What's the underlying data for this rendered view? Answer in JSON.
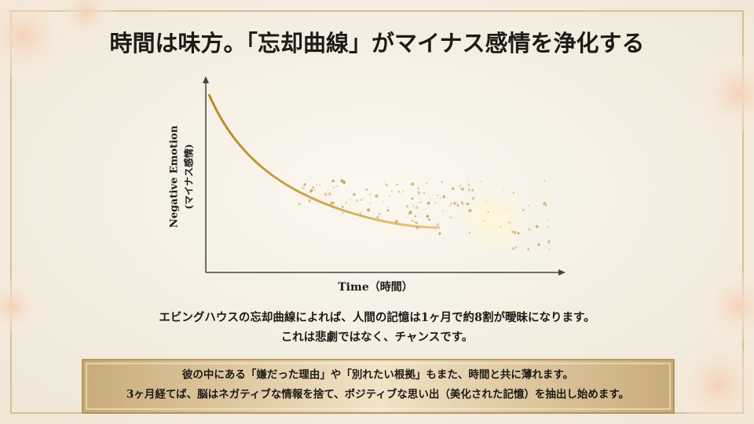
{
  "header": {
    "title": "時間は味方。「忘却曲線」がマイナス感情を浄化する"
  },
  "chart": {
    "y_label": [
      "Negative Emotion",
      "(マイナス感情)"
    ],
    "x_label": "Time（時間）"
  },
  "body": {
    "lines": [
      "エビングハウスの忘却曲線によれば、人間の記憶は1ヶ月で約8割が曖昧になります。",
      "これは悲劇ではなく、チャンスです。"
    ]
  },
  "callout": {
    "lines": [
      "彼の中にある「嫌だった理由」や「別れたい根拠」もまた、時間と共に薄れます。",
      "3ヶ月経てば、脳はネガティブな情報を捨て、ポジティブな思い出（美化された記憶）を抽出し始めます。"
    ]
  }
}
